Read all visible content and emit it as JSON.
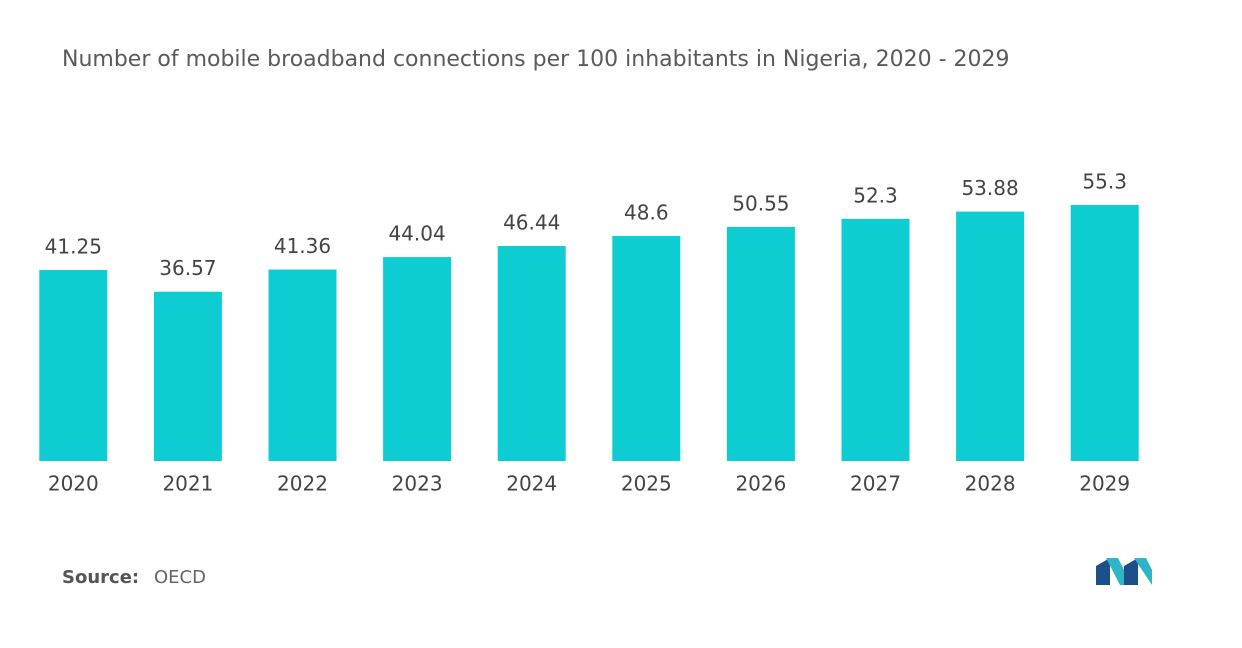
{
  "chart_data": {
    "type": "bar",
    "title": "Number of mobile broadband connections per 100 inhabitants in Nigeria, 2020 - 2029",
    "categories": [
      "2020",
      "2021",
      "2022",
      "2023",
      "2024",
      "2025",
      "2026",
      "2027",
      "2028",
      "2029"
    ],
    "values": [
      41.25,
      36.57,
      41.36,
      44.04,
      46.44,
      48.6,
      50.55,
      52.3,
      53.88,
      55.3
    ],
    "color": "#0dcdd3",
    "source": {
      "label": "Source:",
      "text": "OECD"
    }
  }
}
